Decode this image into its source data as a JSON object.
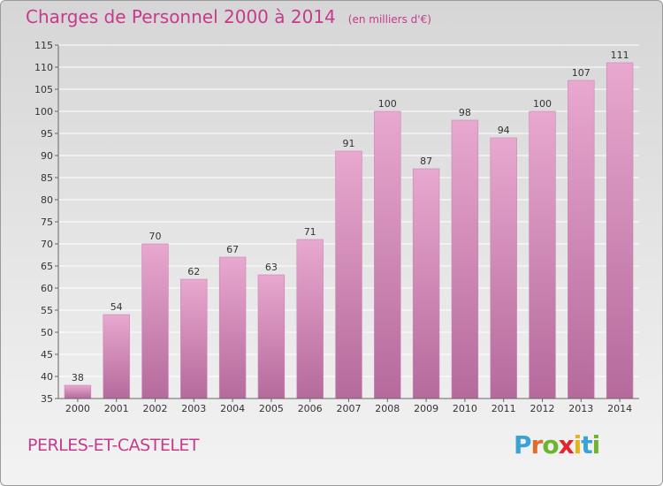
{
  "title": "Charges de Personnel 2000 à 2014",
  "subtitle": "(en milliers d'€)",
  "location": "PERLES-ET-CASTELET",
  "logo": {
    "text": "Proxiti",
    "colors": [
      "#3aa3d6",
      "#e06b2a",
      "#6bb52f",
      "#e0262e",
      "#e8b21b",
      "#3aa3d6",
      "#6bb52f"
    ]
  },
  "colors": {
    "bar_top": "#e8a8cf",
    "bar_bottom": "#b56a9c",
    "text_accent": "#c63a8e",
    "grid": "#ffffff",
    "axis_text": "#333333"
  },
  "chart_data": {
    "type": "bar",
    "title": "Charges de Personnel 2000 à 2014",
    "subtitle": "(en milliers d'€)",
    "categories": [
      "2000",
      "2001",
      "2002",
      "2003",
      "2004",
      "2005",
      "2006",
      "2007",
      "2008",
      "2009",
      "2010",
      "2011",
      "2012",
      "2013",
      "2014"
    ],
    "values": [
      38,
      54,
      70,
      62,
      67,
      63,
      71,
      91,
      100,
      87,
      98,
      94,
      100,
      107,
      111
    ],
    "ylim": [
      35,
      115
    ],
    "yticks": [
      35,
      40,
      45,
      50,
      55,
      60,
      65,
      70,
      75,
      80,
      85,
      90,
      95,
      100,
      105,
      110,
      115
    ],
    "grid": true,
    "data_labels": true
  }
}
